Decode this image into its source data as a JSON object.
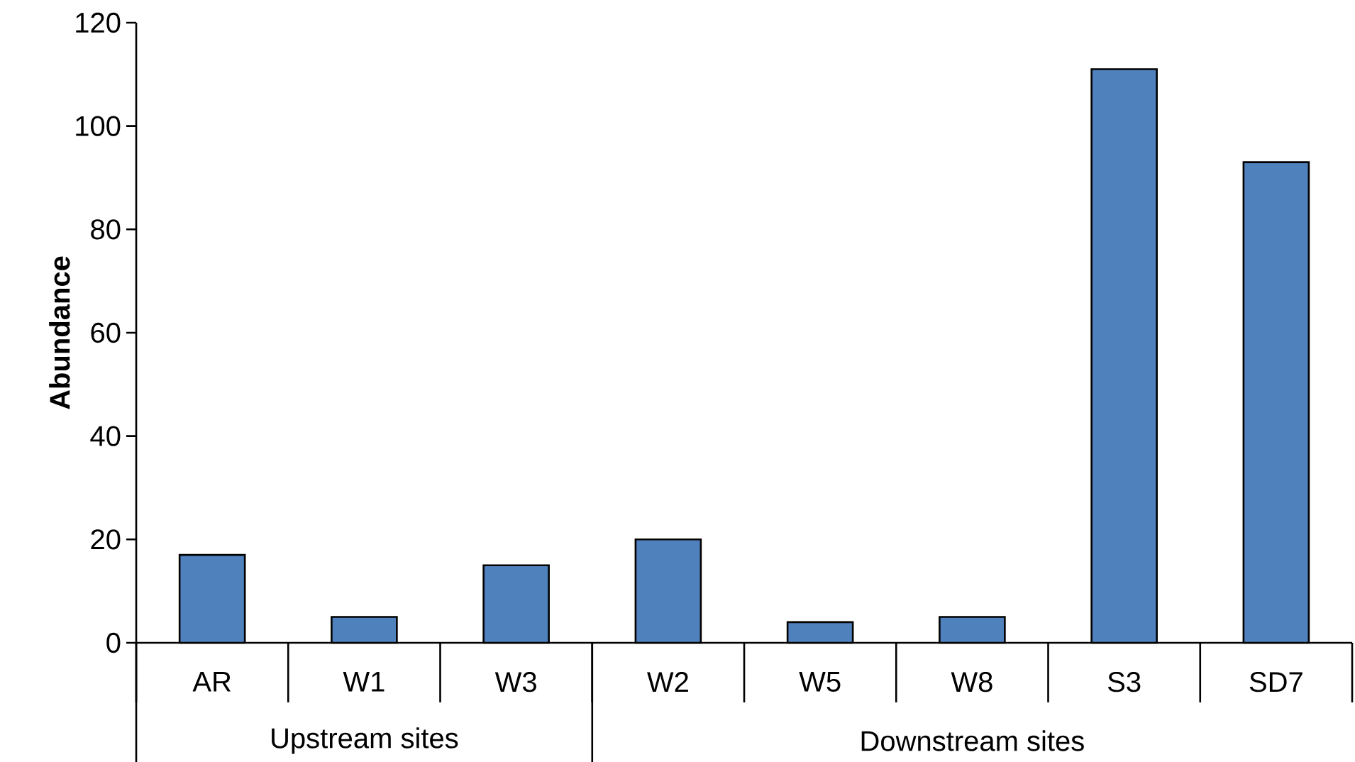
{
  "chart_data": {
    "type": "bar",
    "ylabel": "Abundance",
    "categories": [
      "AR",
      "W1",
      "W3",
      "W2",
      "W5",
      "W8",
      "S3",
      "SD7"
    ],
    "values": [
      17,
      5,
      15,
      20,
      4,
      5,
      111,
      93
    ],
    "color": "#4f81bd",
    "ylim": [
      0,
      120
    ],
    "yticks": [
      0,
      20,
      40,
      60,
      80,
      100,
      120
    ],
    "annotations": [
      "Upstream sites",
      "Downstream sites"
    ]
  }
}
